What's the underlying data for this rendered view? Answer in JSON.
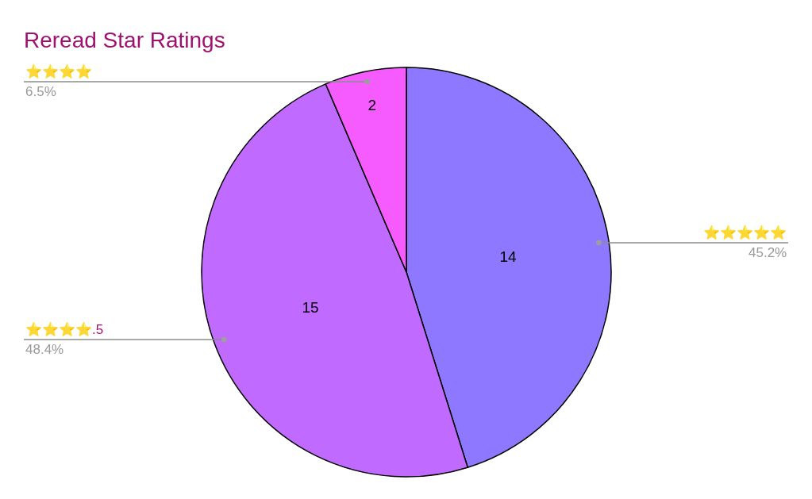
{
  "chart_data": {
    "type": "pie",
    "title": "Reread Star Ratings",
    "categories": [
      "⭐⭐⭐⭐⭐",
      "⭐⭐⭐⭐.5",
      "⭐⭐⭐⭐"
    ],
    "values": [
      14,
      15,
      2
    ],
    "colors": [
      "#8e78ff",
      "#c16aff",
      "#f55bff"
    ],
    "data_labels": true,
    "annotations": [
      "45.2%",
      "48.4%",
      "6.5%"
    ],
    "legend": false
  }
}
